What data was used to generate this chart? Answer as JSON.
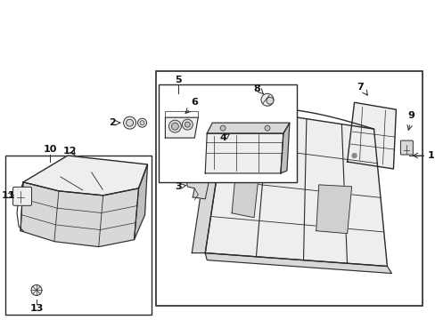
{
  "background_color": "#ffffff",
  "fig_width": 4.89,
  "fig_height": 3.6,
  "dpi": 100,
  "line_color": "#2a2a2a",
  "fill_light": "#eeeeee",
  "fill_mid": "#d8d8d8",
  "fill_dark": "#c0c0c0"
}
